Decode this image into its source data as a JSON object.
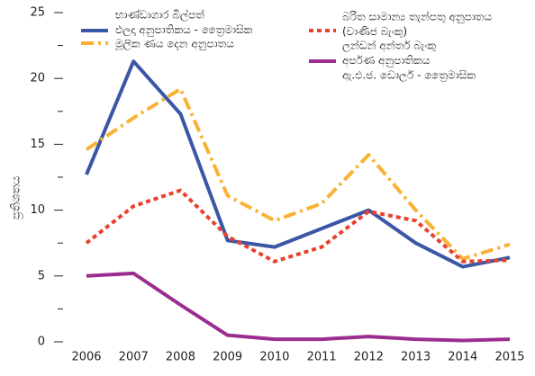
{
  "chart_data": {
    "type": "line",
    "ylabel": "ප්‍රතිශතය",
    "categories": [
      "2006",
      "2007",
      "2008",
      "2009",
      "2010",
      "2011",
      "2012",
      "2013",
      "2014",
      "2015"
    ],
    "series": [
      {
        "name": [
          "භාණ්ඩාගාර බිල්පත්",
          "ඵලදා අනුපාතිකය - ත්‍රෛමාසික"
        ],
        "color": "#3a56a5",
        "dash": "solid",
        "values": [
          12.7,
          21.3,
          17.3,
          7.7,
          7.2,
          8.6,
          10.0,
          7.5,
          5.7,
          6.4
        ]
      },
      {
        "name": [
          "මූලික ණය දෙන අනුපාතය"
        ],
        "color": "#f9b233",
        "dash": "dashdot",
        "values": [
          14.6,
          17.0,
          19.2,
          11.1,
          9.2,
          10.5,
          14.2,
          10.0,
          6.3,
          7.4
        ]
      },
      {
        "name": [
          "බරිත සාමාන්‍ය තැන්පතු අනුපාතය",
          "(වාණිජ බැංකු)"
        ],
        "color": "#e8412c",
        "dash": "dotted",
        "values": [
          7.5,
          10.3,
          11.5,
          8.0,
          6.1,
          7.2,
          9.9,
          9.2,
          6.1,
          6.2
        ]
      },
      {
        "name": [
          "ලන්ඩන් අන්තර් බැංකු",
          "අර්පණ අනුපාතිකය",
          "ඇ.එ.ජ. ඩොලර් - ත්‍රෛමාසික"
        ],
        "color": "#9b2d8e",
        "dash": "solid",
        "values": [
          5.0,
          5.2,
          2.8,
          0.5,
          0.2,
          0.2,
          0.4,
          0.2,
          0.1,
          0.2
        ]
      }
    ],
    "ylim": [
      0,
      25
    ],
    "yticks": [
      0,
      5,
      10,
      15,
      20,
      25
    ],
    "yminorticks": [
      2.5,
      7.5,
      12.5,
      17.5,
      22.5
    ]
  }
}
